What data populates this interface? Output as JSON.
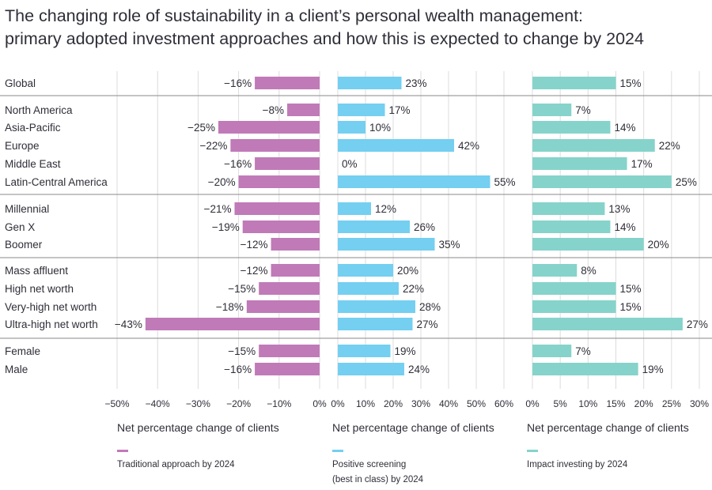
{
  "title_lines": [
    "The changing role of sustainability in a client’s personal wealth management:",
    "primary adopted investment approaches and how this is expected to change by 2024"
  ],
  "colors": {
    "traditional": "#c07ab8",
    "positive": "#74cff1",
    "impact": "#86d3cb",
    "grid": "#dcdcdc",
    "separator": "#8a8a8a"
  },
  "chart_data": {
    "type": "bar",
    "orientation": "horizontal",
    "title": "The changing role of sustainability in a client’s personal wealth management: primary adopted investment approaches and how this is expected to change by 2024",
    "categories": [
      "Global",
      "North America",
      "Asia-Pacific",
      "Europe",
      "Middle East",
      "Latin-Central America",
      "Millennial",
      "Gen X",
      "Boomer",
      "Mass affluent",
      "High net worth",
      "Very-high net worth",
      "Ultra-high net worth",
      "Female",
      "Male"
    ],
    "groups": [
      [
        0
      ],
      [
        1,
        2,
        3,
        4,
        5
      ],
      [
        6,
        7,
        8
      ],
      [
        9,
        10,
        11,
        12
      ],
      [
        13,
        14
      ]
    ],
    "grid": true,
    "panels": [
      {
        "id": "traditional",
        "xlabel": "Net percentage change of clients",
        "legend": [
          "Traditional approach by 2024"
        ],
        "xlim": [
          -50,
          0
        ],
        "ticks": [
          -50,
          -40,
          -30,
          -20,
          -10,
          0
        ],
        "tick_labels": [
          "-50%",
          "-40%",
          "-30%",
          "-20%",
          "-10%",
          "0%"
        ],
        "values": [
          -16,
          -8,
          -25,
          -22,
          -16,
          -20,
          -21,
          -19,
          -12,
          -12,
          -15,
          -18,
          -43,
          -15,
          -16
        ]
      },
      {
        "id": "positive",
        "xlabel": "Net percentage change of clients",
        "legend": [
          "Positive screening",
          "(best in class) by 2024"
        ],
        "xlim": [
          0,
          60
        ],
        "ticks": [
          0,
          10,
          20,
          30,
          40,
          50,
          60
        ],
        "tick_labels": [
          "0%",
          "10%",
          "20%",
          "30%",
          "40%",
          "50%",
          "60%"
        ],
        "values": [
          23,
          17,
          10,
          42,
          0,
          55,
          12,
          26,
          35,
          20,
          22,
          28,
          27,
          19,
          24
        ]
      },
      {
        "id": "impact",
        "xlabel": "Net percentage change of clients",
        "legend": [
          "Impact investing by 2024"
        ],
        "xlim": [
          0,
          30
        ],
        "ticks": [
          0,
          5,
          10,
          15,
          20,
          25,
          30
        ],
        "tick_labels": [
          "0%",
          "5%",
          "10%",
          "15%",
          "20%",
          "25%",
          "30%"
        ],
        "values": [
          15,
          7,
          14,
          22,
          17,
          25,
          13,
          14,
          20,
          8,
          15,
          15,
          27,
          7,
          19
        ]
      }
    ]
  }
}
